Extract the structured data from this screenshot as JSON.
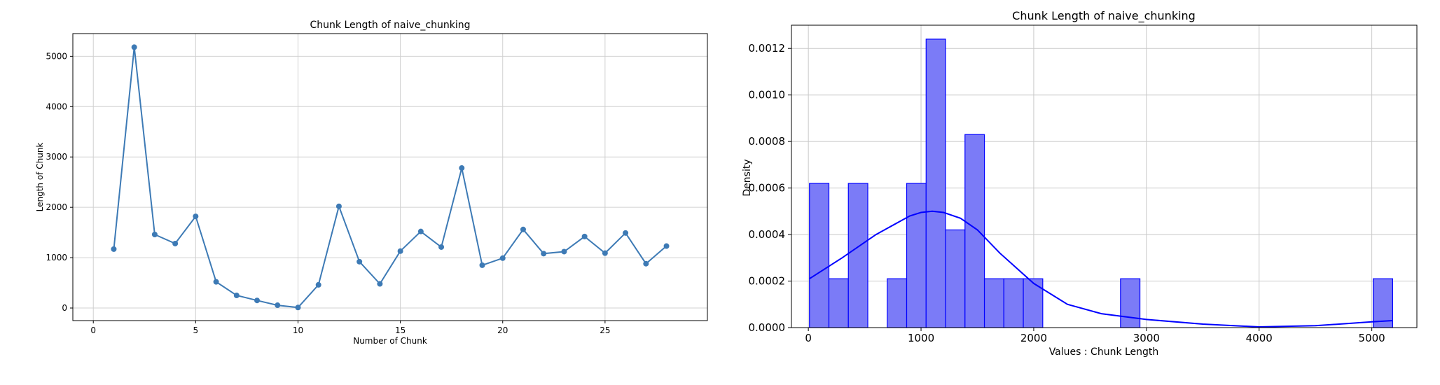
{
  "chart_data": [
    {
      "type": "line",
      "title": "Chunk Length of naive_chunking",
      "xlabel": "Number of Chunk",
      "ylabel": "Length of Chunk",
      "xlim": [
        -1,
        30
      ],
      "ylim": [
        -250,
        5450
      ],
      "xticks": [
        0,
        5,
        10,
        15,
        20,
        25
      ],
      "yticks": [
        0,
        1000,
        2000,
        3000,
        4000,
        5000
      ],
      "grid": true,
      "color": "#3d7ab5",
      "marker": "circle",
      "x": [
        1,
        2,
        3,
        4,
        5,
        6,
        7,
        8,
        9,
        10,
        11,
        12,
        13,
        14,
        15,
        16,
        17,
        18,
        19,
        20,
        21,
        22,
        23,
        24,
        25,
        26,
        27,
        28
      ],
      "values": [
        1170,
        5180,
        1460,
        1280,
        1820,
        520,
        250,
        150,
        55,
        10,
        460,
        2020,
        920,
        480,
        1130,
        1520,
        1210,
        2780,
        850,
        990,
        1560,
        1080,
        1120,
        1420,
        1090,
        1490,
        880,
        1230
      ]
    },
    {
      "type": "histogram",
      "title": "Chunk Length of naive_chunking",
      "xlabel": "Values : Chunk Length",
      "ylabel": "Density",
      "xlim": [
        -150,
        5400
      ],
      "ylim": [
        0,
        0.0013
      ],
      "xticks": [
        0,
        1000,
        2000,
        3000,
        4000,
        5000
      ],
      "yticks": [
        "0.0000",
        "0.0002",
        "0.0004",
        "0.0006",
        "0.0008",
        "0.0010",
        "0.0012"
      ],
      "grid": true,
      "bar_color": "#7b7bf7",
      "edge_color": "#0000ff",
      "bin_edges": [
        10,
        182.5,
        355,
        527.5,
        700,
        872.5,
        1045,
        1217.5,
        1390,
        1562.5,
        1735,
        1907.5,
        2080,
        2252.5,
        2425,
        2597.5,
        2770,
        2942.5,
        3115,
        3287.5,
        3460,
        3632.5,
        3805,
        3977.5,
        4150,
        4322.5,
        4495,
        4667.5,
        4840,
        5012.5,
        5185
      ],
      "densities": [
        0.00062,
        0.00021,
        0.00062,
        0,
        0.00021,
        0.00062,
        0.00124,
        0.00042,
        0.00083,
        0.00021,
        0.00021,
        0.00021,
        0,
        0,
        0,
        0,
        0.00021,
        0,
        0,
        0,
        0,
        0,
        0,
        0,
        0,
        0,
        0,
        0,
        0,
        0.00021
      ],
      "kde_curve": {
        "x": [
          10,
          300,
          600,
          900,
          1000,
          1100,
          1200,
          1350,
          1500,
          1700,
          2000,
          2300,
          2600,
          3000,
          3500,
          4000,
          4500,
          4800,
          5000,
          5185
        ],
        "y": [
          0.00021,
          0.0003,
          0.0004,
          0.00048,
          0.000495,
          0.0005,
          0.000495,
          0.00047,
          0.00042,
          0.00032,
          0.00019,
          0.0001,
          6e-05,
          3.5e-05,
          1.5e-05,
          3e-06,
          8e-06,
          1.8e-05,
          2.5e-05,
          3e-05
        ]
      }
    }
  ]
}
